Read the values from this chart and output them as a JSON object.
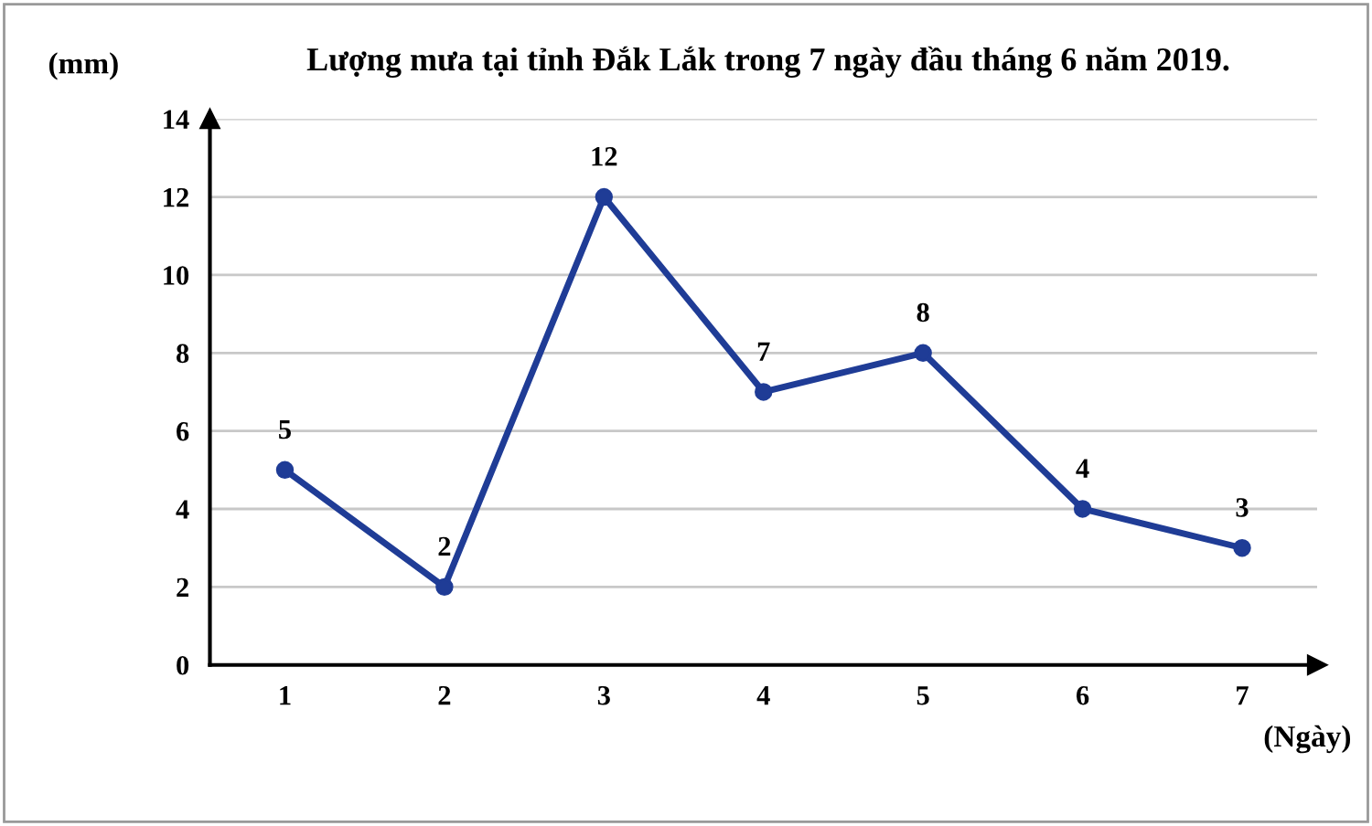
{
  "chart_data": {
    "type": "line",
    "title": "Lượng mưa tại tỉnh Đắk Lắk trong 7 ngày đầu tháng 6 năm 2019.",
    "ylabel": "(mm)",
    "xlabel": "(Ngày)",
    "categories": [
      "1",
      "2",
      "3",
      "4",
      "5",
      "6",
      "7"
    ],
    "series": [
      {
        "color": "#1f3c96",
        "values": [
          5,
          2,
          12,
          7,
          8,
          4,
          3
        ]
      }
    ],
    "ylim": [
      0,
      14
    ],
    "yticks": [
      0,
      2,
      4,
      6,
      8,
      10,
      12,
      14
    ],
    "grid": "y",
    "marker": "circle",
    "line_style": "solid",
    "data_labels": true,
    "legend": false
  }
}
